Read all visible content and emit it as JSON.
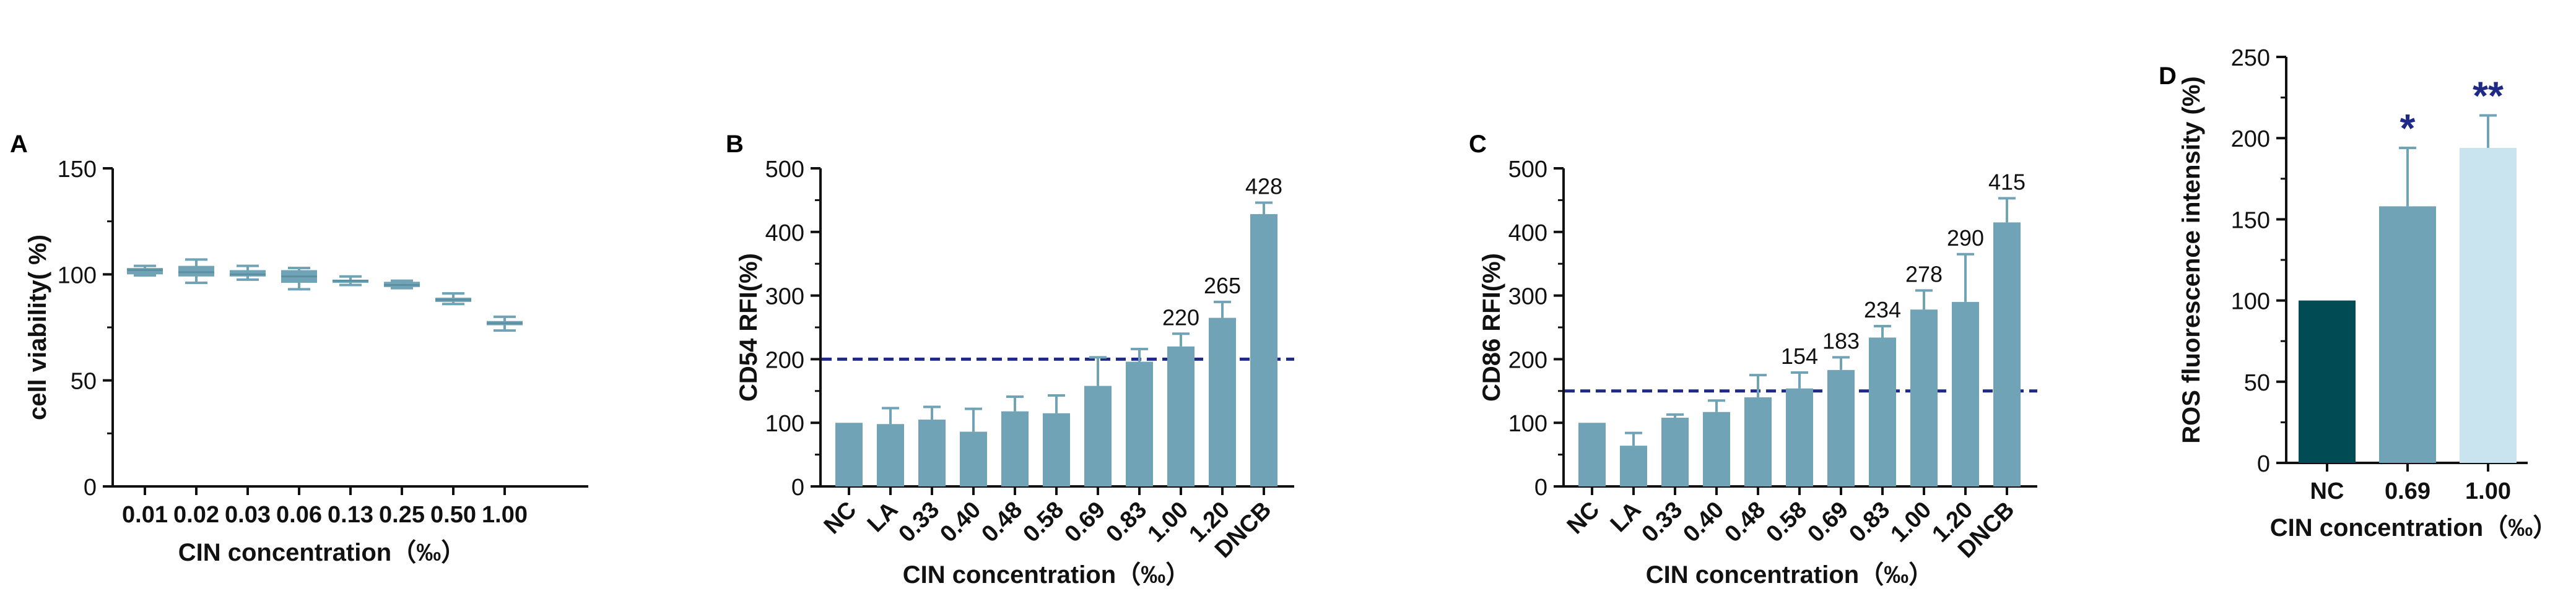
{
  "colors": {
    "axis": "#111111",
    "bar": "#6fa3b5",
    "bar_dark": "#004b54",
    "bar_light": "#c9e4ef",
    "dashed_line": "#1f2a86",
    "star": "#1f2a86",
    "text": "#111111"
  },
  "chart_data": [
    {
      "panel": "A",
      "type": "box",
      "title": "",
      "xlabel": "CIN concentration（‰）",
      "ylabel": "cell viability( %)",
      "ylim": [
        0,
        150
      ],
      "yticks": [
        0,
        50,
        100,
        150
      ],
      "categories": [
        "0.01",
        "0.02",
        "0.03",
        "0.06",
        "0.13",
        "0.25",
        "0.50",
        "1.00"
      ],
      "boxes": [
        {
          "min": 99.5,
          "q1": 100,
          "median": 102,
          "q3": 103,
          "max": 104
        },
        {
          "min": 96,
          "q1": 99,
          "median": 101,
          "q3": 104,
          "max": 107
        },
        {
          "min": 97.5,
          "q1": 99,
          "median": 100,
          "q3": 102,
          "max": 104
        },
        {
          "min": 93,
          "q1": 96,
          "median": 99,
          "q3": 102,
          "max": 103
        },
        {
          "min": 95,
          "q1": 96,
          "median": 97,
          "q3": 97.5,
          "max": 99
        },
        {
          "min": 93.5,
          "q1": 94,
          "median": 95,
          "q3": 96.5,
          "max": 97
        },
        {
          "min": 86,
          "q1": 87,
          "median": 88,
          "q3": 89,
          "max": 91
        },
        {
          "min": 73.5,
          "q1": 76,
          "median": 77,
          "q3": 78,
          "max": 80
        }
      ]
    },
    {
      "panel": "B",
      "type": "bar",
      "title": "",
      "xlabel": "CIN concentration（‰）",
      "ylabel": "CD54 RFI(%)",
      "ylim": [
        0,
        500
      ],
      "yticks": [
        0,
        100,
        200,
        300,
        400,
        500
      ],
      "threshold": 200,
      "categories": [
        "NC",
        "LA",
        "0.33",
        "0.40",
        "0.48",
        "0.58",
        "0.69",
        "0.83",
        "1.00",
        "1.20",
        "DNCB"
      ],
      "values": [
        100,
        98,
        105,
        86,
        118,
        115,
        158,
        196,
        220,
        265,
        428
      ],
      "errors": [
        0,
        25,
        20,
        36,
        23,
        28,
        45,
        20,
        20,
        25,
        18
      ],
      "value_labels": [
        "",
        "",
        "",
        "",
        "",
        "",
        "",
        "",
        "220",
        "265",
        "428"
      ]
    },
    {
      "panel": "C",
      "type": "bar",
      "title": "",
      "xlabel": "CIN concentration（‰）",
      "ylabel": "CD86 RFI(%)",
      "ylim": [
        0,
        500
      ],
      "yticks": [
        0,
        100,
        200,
        300,
        400,
        500
      ],
      "threshold": 150,
      "categories": [
        "NC",
        "LA",
        "0.33",
        "0.40",
        "0.48",
        "0.58",
        "0.69",
        "0.83",
        "1.00",
        "1.20",
        "DNCB"
      ],
      "values": [
        100,
        64,
        108,
        117,
        140,
        154,
        183,
        234,
        278,
        290,
        415
      ],
      "errors": [
        0,
        20,
        5,
        18,
        35,
        25,
        20,
        18,
        30,
        75,
        38
      ],
      "value_labels": [
        "",
        "",
        "",
        "",
        "",
        "154",
        "183",
        "234",
        "278",
        "290",
        "415"
      ]
    },
    {
      "panel": "D",
      "type": "bar",
      "title": "",
      "xlabel": "CIN concentration（‰）",
      "ylabel": "ROS fluorescence intensity (%)",
      "ylim": [
        0,
        250
      ],
      "yticks": [
        0,
        50,
        100,
        150,
        200,
        250
      ],
      "categories": [
        "NC",
        "0.69",
        "1.00"
      ],
      "values": [
        100,
        158,
        194
      ],
      "errors": [
        0,
        36,
        20
      ],
      "significance": [
        "",
        "*",
        "**"
      ]
    }
  ]
}
